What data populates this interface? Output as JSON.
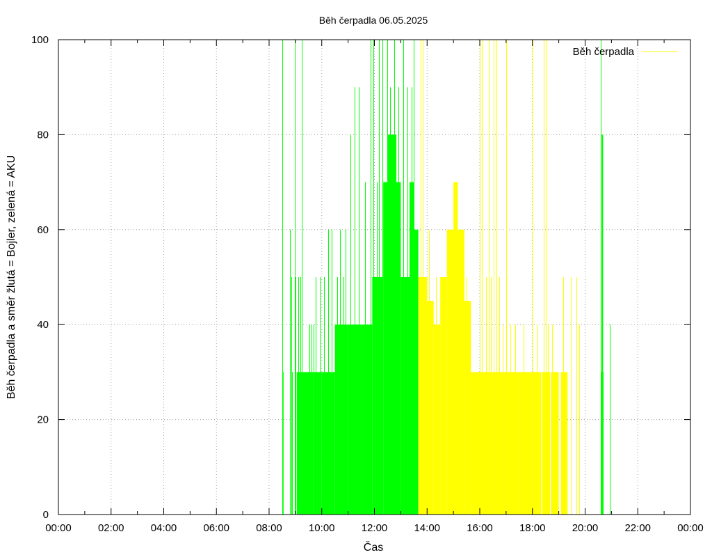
{
  "chart_data": {
    "type": "bar",
    "title": "Běh čerpadla 06.05.2025",
    "xlabel": "Čas",
    "ylabel": "Běh čerpadla a směr žlutá = Bojler, zelená = AKU",
    "legend": {
      "label": "Běh čerpadla",
      "placement": "top-right",
      "color": "#ffff00"
    },
    "grid": true,
    "xlim": [
      "00:00",
      "24:00"
    ],
    "ylim": [
      0,
      100
    ],
    "x_ticks": [
      "00:00",
      "02:00",
      "04:00",
      "06:00",
      "08:00",
      "10:00",
      "12:00",
      "14:00",
      "16:00",
      "18:00",
      "20:00",
      "22:00",
      "00:00"
    ],
    "y_ticks": [
      "0",
      "20",
      "40",
      "60",
      "80",
      "100"
    ],
    "series_colors": {
      "AKU": "#00ff00",
      "Bojler": "#ffff00"
    },
    "series": [
      {
        "direction": "AKU",
        "color": "#00ff00",
        "fills": [
          {
            "start": "08:31",
            "end": "08:33",
            "value": 30
          },
          {
            "start": "09:03",
            "end": "09:20",
            "value": 30
          },
          {
            "start": "09:20",
            "end": "09:40",
            "value": 30
          },
          {
            "start": "09:40",
            "end": "10:00",
            "value": 30
          },
          {
            "start": "10:00",
            "end": "10:30",
            "value": 30
          },
          {
            "start": "10:30",
            "end": "11:00",
            "value": 40
          },
          {
            "start": "11:00",
            "end": "11:30",
            "value": 40
          },
          {
            "start": "11:30",
            "end": "11:55",
            "value": 40
          },
          {
            "start": "11:55",
            "end": "12:20",
            "value": 50
          },
          {
            "start": "12:20",
            "end": "12:40",
            "value": 70
          },
          {
            "start": "12:30",
            "end": "12:50",
            "value": 80
          },
          {
            "start": "12:40",
            "end": "13:00",
            "value": 70
          },
          {
            "start": "13:00",
            "end": "13:20",
            "value": 50
          },
          {
            "start": "13:20",
            "end": "13:30",
            "value": 70
          },
          {
            "start": "13:30",
            "end": "13:40",
            "value": 60
          },
          {
            "start": "20:36",
            "end": "20:42",
            "value": 30
          },
          {
            "start": "20:38",
            "end": "20:41",
            "value": 80
          }
        ],
        "spikes": [
          {
            "time": "08:30",
            "value": 100
          },
          {
            "time": "08:48",
            "value": 60
          },
          {
            "time": "08:50",
            "value": 50
          },
          {
            "time": "08:52",
            "value": 30
          },
          {
            "time": "08:58",
            "value": 100
          },
          {
            "time": "09:00",
            "value": 50
          },
          {
            "time": "09:06",
            "value": 50
          },
          {
            "time": "09:12",
            "value": 50
          },
          {
            "time": "09:15",
            "value": 100
          },
          {
            "time": "09:32",
            "value": 40
          },
          {
            "time": "09:36",
            "value": 40
          },
          {
            "time": "09:42",
            "value": 40
          },
          {
            "time": "09:46",
            "value": 50
          },
          {
            "time": "09:55",
            "value": 50
          },
          {
            "time": "10:05",
            "value": 50
          },
          {
            "time": "10:15",
            "value": 60
          },
          {
            "time": "10:23",
            "value": 60
          },
          {
            "time": "10:35",
            "value": 50
          },
          {
            "time": "10:42",
            "value": 60
          },
          {
            "time": "10:50",
            "value": 50
          },
          {
            "time": "10:55",
            "value": 60
          },
          {
            "time": "11:05",
            "value": 80
          },
          {
            "time": "11:15",
            "value": 90
          },
          {
            "time": "11:25",
            "value": 90
          },
          {
            "time": "11:38",
            "value": 70
          },
          {
            "time": "11:52",
            "value": 100
          },
          {
            "time": "11:58",
            "value": 100
          },
          {
            "time": "12:05",
            "value": 70
          },
          {
            "time": "12:10",
            "value": 100
          },
          {
            "time": "12:18",
            "value": 100
          },
          {
            "time": "12:25",
            "value": 70
          },
          {
            "time": "12:30",
            "value": 100
          },
          {
            "time": "12:36",
            "value": 90
          },
          {
            "time": "12:45",
            "value": 100
          },
          {
            "time": "12:55",
            "value": 90
          },
          {
            "time": "13:05",
            "value": 100
          },
          {
            "time": "13:15",
            "value": 90
          },
          {
            "time": "13:25",
            "value": 90
          },
          {
            "time": "13:30",
            "value": 100
          },
          {
            "time": "20:35",
            "value": 100
          },
          {
            "time": "20:56",
            "value": 40
          }
        ]
      },
      {
        "direction": "Bojler",
        "color": "#ffff00",
        "fills": [
          {
            "start": "13:40",
            "end": "14:00",
            "value": 50
          },
          {
            "start": "14:00",
            "end": "14:15",
            "value": 45
          },
          {
            "start": "14:15",
            "end": "14:30",
            "value": 40
          },
          {
            "start": "14:30",
            "end": "14:45",
            "value": 50
          },
          {
            "start": "14:45",
            "end": "15:00",
            "value": 60
          },
          {
            "start": "15:00",
            "end": "15:10",
            "value": 70
          },
          {
            "start": "15:10",
            "end": "15:25",
            "value": 60
          },
          {
            "start": "15:25",
            "end": "15:40",
            "value": 45
          },
          {
            "start": "15:40",
            "end": "16:00",
            "value": 30
          },
          {
            "start": "16:00",
            "end": "16:30",
            "value": 30
          },
          {
            "start": "16:30",
            "end": "17:00",
            "value": 30
          },
          {
            "start": "17:00",
            "end": "17:30",
            "value": 30
          },
          {
            "start": "17:30",
            "end": "18:00",
            "value": 30
          },
          {
            "start": "18:00",
            "end": "18:20",
            "value": 30
          },
          {
            "start": "18:22",
            "end": "18:40",
            "value": 30
          },
          {
            "start": "18:42",
            "end": "19:00",
            "value": 30
          },
          {
            "start": "19:05",
            "end": "19:20",
            "value": 30
          }
        ],
        "spikes": [
          {
            "time": "13:45",
            "value": 100
          },
          {
            "time": "13:50",
            "value": 100
          },
          {
            "time": "14:05",
            "value": 60
          },
          {
            "time": "14:20",
            "value": 50
          },
          {
            "time": "15:30",
            "value": 50
          },
          {
            "time": "16:00",
            "value": 100
          },
          {
            "time": "16:05",
            "value": 100
          },
          {
            "time": "16:15",
            "value": 50
          },
          {
            "time": "16:20",
            "value": 100
          },
          {
            "time": "16:25",
            "value": 50
          },
          {
            "time": "16:32",
            "value": 100
          },
          {
            "time": "16:38",
            "value": 100
          },
          {
            "time": "16:45",
            "value": 50
          },
          {
            "time": "16:52",
            "value": 40
          },
          {
            "time": "17:00",
            "value": 100
          },
          {
            "time": "17:10",
            "value": 40
          },
          {
            "time": "17:20",
            "value": 40
          },
          {
            "time": "17:40",
            "value": 40
          },
          {
            "time": "18:00",
            "value": 100
          },
          {
            "time": "18:10",
            "value": 40
          },
          {
            "time": "18:25",
            "value": 100
          },
          {
            "time": "18:30",
            "value": 100
          },
          {
            "time": "18:35",
            "value": 40
          },
          {
            "time": "18:45",
            "value": 40
          },
          {
            "time": "19:10",
            "value": 50
          },
          {
            "time": "19:28",
            "value": 50
          },
          {
            "time": "19:40",
            "value": 50
          },
          {
            "time": "19:46",
            "value": 40
          }
        ]
      }
    ]
  }
}
